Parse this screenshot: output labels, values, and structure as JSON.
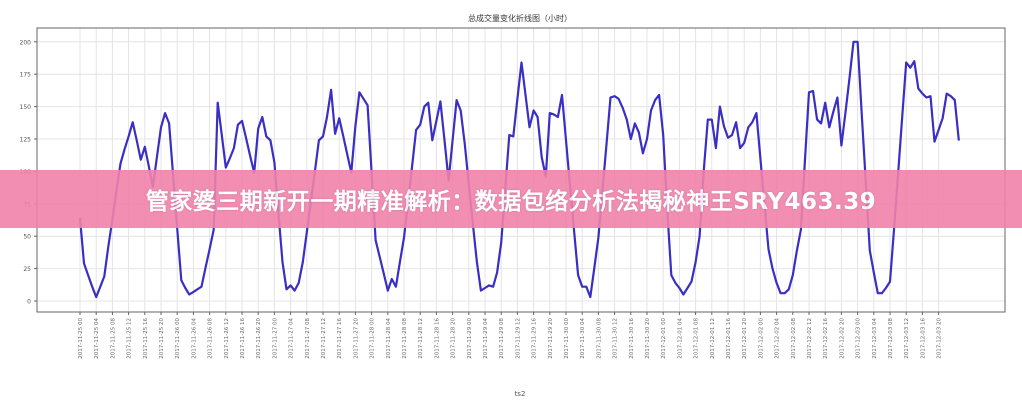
{
  "chart_data": {
    "type": "line",
    "title": "总成交量变化折线图（小时）",
    "xlabel": "ts2",
    "ylabel": "",
    "x_start": "2017-11-25 00:00",
    "x_step": "1 hour",
    "ylim": [
      -12,
      210
    ],
    "yticks": [
      0,
      25,
      50,
      75,
      100,
      125,
      150,
      175,
      200
    ],
    "grid": true,
    "line_color": "#3a2fc4",
    "xtick_labels": [
      "2017-11-25 00",
      "2017-11-25 04",
      "2017-11-25 08",
      "2017-11-25 12",
      "2017-11-25 16",
      "2017-11-25 20",
      "2017-11-26 00",
      "2017-11-26 04",
      "2017-11-26 08",
      "2017-11-26 12",
      "2017-11-26 16",
      "2017-11-26 20",
      "2017-11-27 00",
      "2017-11-27 04",
      "2017-11-27 08",
      "2017-11-27 12",
      "2017-11-27 16",
      "2017-11-27 20",
      "2017-11-28 00",
      "2017-11-28 04",
      "2017-11-28 08",
      "2017-11-28 12",
      "2017-11-28 16",
      "2017-11-28 20",
      "2017-11-29 00",
      "2017-11-29 04",
      "2017-11-29 08",
      "2017-11-29 12",
      "2017-11-29 16",
      "2017-11-29 20",
      "2017-11-30 00",
      "2017-11-30 04",
      "2017-11-30 08",
      "2017-11-30 12",
      "2017-11-30 16",
      "2017-11-30 20",
      "2017-12-01 00",
      "2017-12-01 04",
      "2017-12-01 08",
      "2017-12-01 12",
      "2017-12-01 16",
      "2017-12-01 20",
      "2017-12-02 00",
      "2017-12-02 04",
      "2017-12-02 08",
      "2017-12-02 12",
      "2017-12-02 16",
      "2017-12-02 20",
      "2017-12-03 00",
      "2017-12-03 04",
      "2017-12-03 08",
      "2017-12-03 12",
      "2017-12-03 16",
      "2017-12-03 20"
    ],
    "values": [
      64,
      29,
      20,
      11,
      3,
      11,
      19,
      42,
      63,
      85,
      106,
      117,
      127,
      138,
      124,
      109,
      119,
      104,
      88,
      111,
      134,
      145,
      137,
      97,
      56,
      16,
      10,
      5,
      7,
      9,
      11,
      26,
      40,
      55,
      153,
      128,
      103,
      110,
      118,
      136,
      139,
      126,
      112,
      99,
      133,
      142,
      127,
      124,
      107,
      68,
      30,
      9,
      12,
      8,
      14,
      30,
      53,
      77,
      100,
      124,
      127,
      142,
      163,
      129,
      141,
      127,
      113,
      99,
      135,
      161,
      156,
      151,
      99,
      47,
      34,
      21,
      8,
      17,
      11,
      30,
      49,
      77,
      104,
      132,
      136,
      150,
      153,
      124,
      139,
      154,
      124,
      93,
      124,
      155,
      147,
      121,
      90,
      60,
      30,
      8,
      10,
      12,
      11,
      22,
      45,
      87,
      128,
      127,
      156,
      184,
      159,
      134,
      147,
      142,
      111,
      96,
      145,
      144,
      142,
      159,
      124,
      89,
      54,
      20,
      11,
      11,
      3,
      26,
      49,
      85,
      121,
      157,
      158,
      156,
      149,
      140,
      125,
      137,
      130,
      114,
      125,
      147,
      155,
      159,
      128,
      70,
      20,
      14,
      10,
      5,
      10,
      15,
      30,
      50,
      100,
      140,
      140,
      118,
      150,
      135,
      126,
      128,
      138,
      118,
      122,
      134,
      138,
      145,
      110,
      75,
      40,
      25,
      14,
      6,
      6,
      9,
      20,
      39,
      55,
      108,
      161,
      162,
      140,
      137,
      153,
      134,
      146,
      157,
      120,
      145,
      172,
      200,
      200,
      146,
      93,
      39,
      22,
      6,
      6,
      10,
      15,
      55,
      98,
      141,
      184,
      180,
      185,
      164,
      160,
      157,
      158,
      123,
      132,
      141,
      160,
      158,
      155,
      124
    ]
  },
  "banner": {
    "text": "管家婆三期新开一期精准解析：数据包络分析法揭秘神王SRY463.39",
    "color": "#f082aa"
  }
}
